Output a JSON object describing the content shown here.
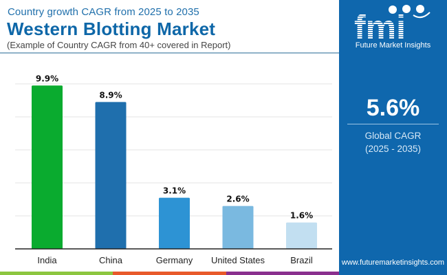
{
  "header": {
    "subtitle_top": "Country growth CAGR from 2025 to 2035",
    "title": "Western Blotting Market",
    "subtitle_bottom": "(Example of Country CAGR from 40+ covered in Report)"
  },
  "brand": {
    "logo_letters": "fmi",
    "logo_name": "Future Market Insights",
    "website": "www.futuremarketinsights.com",
    "panel_color": "#0f67ad"
  },
  "highlight": {
    "value": "5.6%",
    "label_line1": "Global CAGR",
    "label_line2": "(2025 - 2035)"
  },
  "bottom_strip_colors": [
    "#8cc63f",
    "#e8592a",
    "#8a2f8e"
  ],
  "chart_data": {
    "type": "bar",
    "title": "Western Blotting Market",
    "xlabel": "",
    "ylabel": "",
    "categories": [
      "India",
      "China",
      "Germany",
      "United States",
      "Brazil"
    ],
    "values": [
      9.9,
      8.9,
      3.1,
      2.6,
      1.6
    ],
    "value_labels": [
      "9.9%",
      "8.9%",
      "3.1%",
      "2.6%",
      "1.6%"
    ],
    "colors": [
      "#0aab2f",
      "#1f6fad",
      "#2d93d4",
      "#7ab9e0",
      "#c2dff1"
    ],
    "ylim": [
      0,
      10
    ],
    "grid": true,
    "legend": "none"
  }
}
